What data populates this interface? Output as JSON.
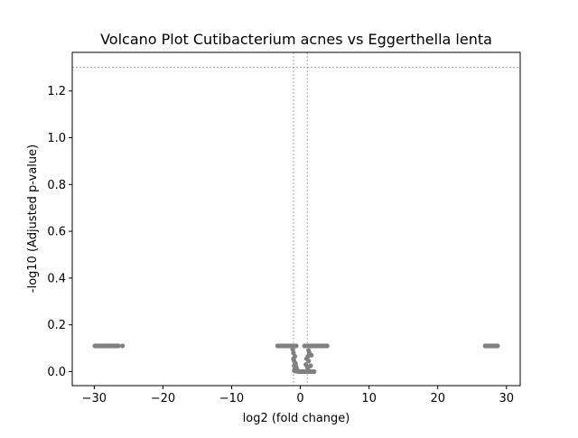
{
  "chart_data": {
    "type": "scatter",
    "title": "Volcano Plot Cutibacterium acnes vs Eggerthella lenta",
    "xlabel": "log2 (fold change)",
    "ylabel": "-log10 (Adjusted p-value)",
    "xlim": [
      -33.2,
      32.0
    ],
    "ylim": [
      -0.06,
      1.365
    ],
    "xticks": [
      -30,
      -20,
      -10,
      0,
      10,
      20,
      30
    ],
    "xtick_labels": [
      "−30",
      "−20",
      "−10",
      "0",
      "10",
      "20",
      "30"
    ],
    "yticks": [
      0.0,
      0.2,
      0.4,
      0.6,
      0.8,
      1.0,
      1.2
    ],
    "ytick_labels": [
      "0.0",
      "0.2",
      "0.4",
      "0.6",
      "0.8",
      "1.0",
      "1.2"
    ],
    "thresholds": {
      "hline": 1.30103,
      "vlines": [
        -1,
        1
      ]
    },
    "grid": false,
    "point_color": "#808080",
    "threshold_color": "#808080",
    "series": [
      {
        "points": [
          [
            -29.9,
            0.11
          ],
          [
            -29.7,
            0.11
          ],
          [
            -29.5,
            0.11
          ],
          [
            -29.3,
            0.11
          ],
          [
            -29.1,
            0.11
          ],
          [
            -28.9,
            0.11
          ],
          [
            -28.7,
            0.11
          ],
          [
            -28.5,
            0.11
          ],
          [
            -28.3,
            0.11
          ],
          [
            -28.1,
            0.11
          ],
          [
            -27.9,
            0.11
          ],
          [
            -27.7,
            0.11
          ],
          [
            -27.5,
            0.11
          ],
          [
            -27.3,
            0.11
          ],
          [
            -27.1,
            0.11
          ],
          [
            -26.9,
            0.11
          ],
          [
            -26.7,
            0.11
          ],
          [
            -26.5,
            0.11
          ],
          [
            -25.9,
            0.11
          ],
          [
            -3.3,
            0.11
          ],
          [
            -3.0,
            0.11
          ],
          [
            -2.7,
            0.11
          ],
          [
            -2.4,
            0.11
          ],
          [
            -2.1,
            0.11
          ],
          [
            -1.8,
            0.11
          ],
          [
            -1.5,
            0.11
          ],
          [
            -1.2,
            0.11
          ],
          [
            -0.9,
            0.11
          ],
          [
            -0.6,
            0.11
          ],
          [
            -1.1,
            0.095
          ],
          [
            -1.0,
            0.08
          ],
          [
            -0.8,
            0.065
          ],
          [
            -1.0,
            0.055
          ],
          [
            -0.9,
            0.045
          ],
          [
            -0.7,
            0.035
          ],
          [
            -0.9,
            0.025
          ],
          [
            -0.6,
            0.02
          ],
          [
            -0.8,
            0.012
          ],
          [
            -0.5,
            0.008
          ],
          [
            -0.9,
            0.004
          ],
          [
            -0.7,
            0.002
          ],
          [
            -0.4,
            0.001
          ],
          [
            -0.2,
            0.0
          ],
          [
            0.0,
            0.0
          ],
          [
            0.2,
            0.0
          ],
          [
            0.4,
            0.0
          ],
          [
            0.6,
            0.0
          ],
          [
            0.8,
            0.0
          ],
          [
            1.0,
            0.001
          ],
          [
            1.2,
            0.0
          ],
          [
            1.4,
            0.0
          ],
          [
            1.6,
            0.0
          ],
          [
            1.8,
            0.0
          ],
          [
            2.0,
            0.0
          ],
          [
            1.1,
            0.01
          ],
          [
            1.0,
            0.02
          ],
          [
            0.8,
            0.03
          ],
          [
            1.5,
            0.025
          ],
          [
            1.2,
            0.045
          ],
          [
            0.9,
            0.055
          ],
          [
            1.1,
            0.065
          ],
          [
            1.6,
            0.07
          ],
          [
            1.3,
            0.08
          ],
          [
            1.2,
            0.09
          ],
          [
            0.6,
            0.11
          ],
          [
            0.9,
            0.11
          ],
          [
            1.2,
            0.11
          ],
          [
            1.5,
            0.11
          ],
          [
            1.8,
            0.11
          ],
          [
            2.1,
            0.11
          ],
          [
            2.4,
            0.11
          ],
          [
            2.7,
            0.11
          ],
          [
            3.0,
            0.11
          ],
          [
            3.3,
            0.11
          ],
          [
            3.6,
            0.11
          ],
          [
            3.9,
            0.11
          ],
          [
            26.9,
            0.11
          ],
          [
            27.1,
            0.11
          ],
          [
            27.3,
            0.11
          ],
          [
            27.5,
            0.11
          ],
          [
            27.7,
            0.11
          ],
          [
            27.9,
            0.11
          ],
          [
            28.1,
            0.11
          ],
          [
            28.3,
            0.11
          ],
          [
            28.5,
            0.11
          ],
          [
            28.7,
            0.11
          ]
        ]
      }
    ]
  }
}
